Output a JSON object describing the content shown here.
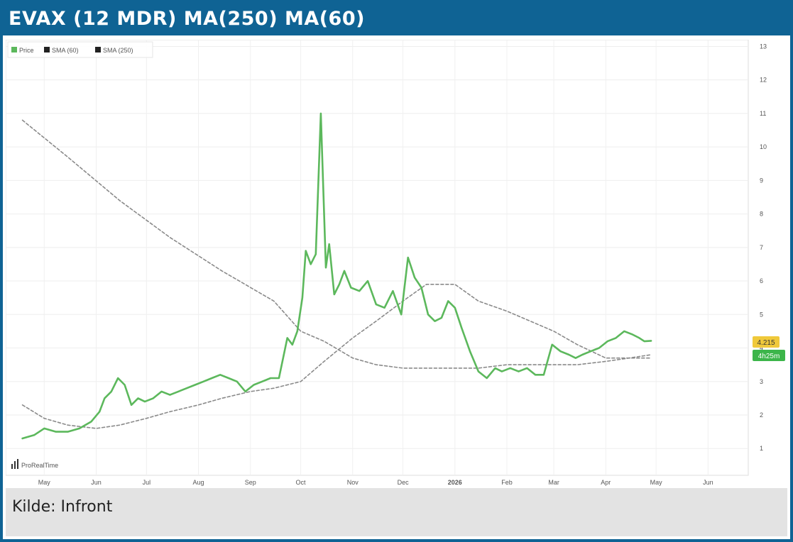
{
  "title": "EVAX (12 MDR) MA(250) MA(60)",
  "source": "Kilde: Infront",
  "watermark": "ProRealTime",
  "colors": {
    "header_bg": "#0f6394",
    "price": "#5cb85c",
    "sma": "#8a8a8a",
    "price_badge": "#f0c93a",
    "sma_badge": "#3cb54a",
    "source_bg": "#e3e3e3"
  },
  "chart_data": {
    "type": "line",
    "title": "EVAX (12 MDR) MA(250) MA(60)",
    "x_tick_labels": [
      "May",
      "Jun",
      "Jul",
      "Aug",
      "Sep",
      "Oct",
      "Nov",
      "Dec",
      "2026",
      "Feb",
      "Mar",
      "Apr",
      "May",
      "Jun"
    ],
    "y_ticks": [
      1,
      2,
      3,
      4,
      5,
      6,
      7,
      8,
      9,
      10,
      11,
      12,
      13
    ],
    "ylim": [
      0.2,
      13.2
    ],
    "y_axis_position": "right",
    "grid": true,
    "legend": "top-left",
    "legend_entries": [
      "Price",
      "SMA (60)",
      "SMA (250)"
    ],
    "badges": {
      "price_value": "4.215",
      "sma_value": "4h25m"
    },
    "series": [
      {
        "name": "Price",
        "style": "solid",
        "x": [
          "2025-04-18",
          "2025-04-25",
          "2025-05-01",
          "2025-05-08",
          "2025-05-15",
          "2025-05-22",
          "2025-05-29",
          "2025-06-03",
          "2025-06-06",
          "2025-06-10",
          "2025-06-14",
          "2025-06-18",
          "2025-06-22",
          "2025-06-26",
          "2025-06-30",
          "2025-07-05",
          "2025-07-10",
          "2025-07-15",
          "2025-07-20",
          "2025-07-25",
          "2025-07-30",
          "2025-08-04",
          "2025-08-09",
          "2025-08-14",
          "2025-08-19",
          "2025-08-24",
          "2025-08-29",
          "2025-09-03",
          "2025-09-08",
          "2025-09-13",
          "2025-09-18",
          "2025-09-23",
          "2025-09-26",
          "2025-09-29",
          "2025-10-02",
          "2025-10-04",
          "2025-10-07",
          "2025-10-10",
          "2025-10-13",
          "2025-10-16",
          "2025-10-18",
          "2025-10-21",
          "2025-10-24",
          "2025-10-27",
          "2025-10-31",
          "2025-11-05",
          "2025-11-10",
          "2025-11-15",
          "2025-11-20",
          "2025-11-25",
          "2025-11-30",
          "2025-12-04",
          "2025-12-08",
          "2025-12-12",
          "2025-12-16",
          "2025-12-20",
          "2025-12-24",
          "2025-12-28",
          "2026-01-01",
          "2026-01-05",
          "2026-01-10",
          "2026-01-15",
          "2026-01-20",
          "2026-01-25",
          "2026-01-29",
          "2026-02-03",
          "2026-02-08",
          "2026-02-13",
          "2026-02-18",
          "2026-02-23",
          "2026-02-28",
          "2026-03-05",
          "2026-03-10",
          "2026-03-14",
          "2026-03-18",
          "2026-03-23",
          "2026-03-28",
          "2026-04-02",
          "2026-04-07",
          "2026-04-12",
          "2026-04-17",
          "2026-04-21",
          "2026-04-24",
          "2026-04-28"
        ],
        "values": [
          1.3,
          1.4,
          1.6,
          1.5,
          1.5,
          1.6,
          1.8,
          2.1,
          2.5,
          2.7,
          3.1,
          2.9,
          2.3,
          2.5,
          2.4,
          2.5,
          2.7,
          2.6,
          2.7,
          2.8,
          2.9,
          3.0,
          3.1,
          3.2,
          3.1,
          3.0,
          2.7,
          2.9,
          3.0,
          3.1,
          3.1,
          4.3,
          4.1,
          4.5,
          5.5,
          6.9,
          6.5,
          6.8,
          11.0,
          6.4,
          7.1,
          5.6,
          5.9,
          6.3,
          5.8,
          5.7,
          6.0,
          5.3,
          5.2,
          5.7,
          5.0,
          6.7,
          6.1,
          5.8,
          5.0,
          4.8,
          4.9,
          5.4,
          5.2,
          4.6,
          3.9,
          3.3,
          3.1,
          3.4,
          3.3,
          3.4,
          3.3,
          3.4,
          3.2,
          3.2,
          4.1,
          3.9,
          3.8,
          3.7,
          3.8,
          3.9,
          4.0,
          4.2,
          4.3,
          4.5,
          4.4,
          4.3,
          4.2,
          4.215
        ]
      },
      {
        "name": "SMA (60)",
        "style": "dashed",
        "x": [
          "2025-04-18",
          "2025-05-01",
          "2025-05-15",
          "2025-06-01",
          "2025-06-15",
          "2025-07-01",
          "2025-07-15",
          "2025-08-01",
          "2025-08-15",
          "2025-09-01",
          "2025-09-15",
          "2025-10-01",
          "2025-10-15",
          "2025-11-01",
          "2025-11-15",
          "2025-12-01",
          "2025-12-15",
          "2026-01-01",
          "2026-01-15",
          "2026-02-01",
          "2026-02-15",
          "2026-03-01",
          "2026-03-15",
          "2026-04-01",
          "2026-04-15",
          "2026-04-28"
        ],
        "values": [
          2.3,
          1.9,
          1.7,
          1.6,
          1.7,
          1.9,
          2.1,
          2.3,
          2.5,
          2.7,
          2.8,
          3.0,
          3.6,
          4.3,
          4.8,
          5.4,
          5.9,
          5.9,
          5.4,
          5.1,
          4.8,
          4.5,
          4.1,
          3.7,
          3.7,
          3.7
        ]
      },
      {
        "name": "SMA (250)",
        "style": "dashed",
        "x": [
          "2025-04-18",
          "2025-05-15",
          "2025-06-15",
          "2025-07-15",
          "2025-08-15",
          "2025-09-15",
          "2025-10-01",
          "2025-10-15",
          "2025-11-01",
          "2025-11-15",
          "2025-12-01",
          "2025-12-15",
          "2026-01-01",
          "2026-01-15",
          "2026-02-01",
          "2026-02-15",
          "2026-03-01",
          "2026-03-15",
          "2026-04-01",
          "2026-04-15",
          "2026-04-28"
        ],
        "values": [
          10.8,
          9.7,
          8.4,
          7.3,
          6.3,
          5.4,
          4.5,
          4.2,
          3.7,
          3.5,
          3.4,
          3.4,
          3.4,
          3.4,
          3.5,
          3.5,
          3.5,
          3.5,
          3.6,
          3.7,
          3.8
        ]
      }
    ]
  }
}
